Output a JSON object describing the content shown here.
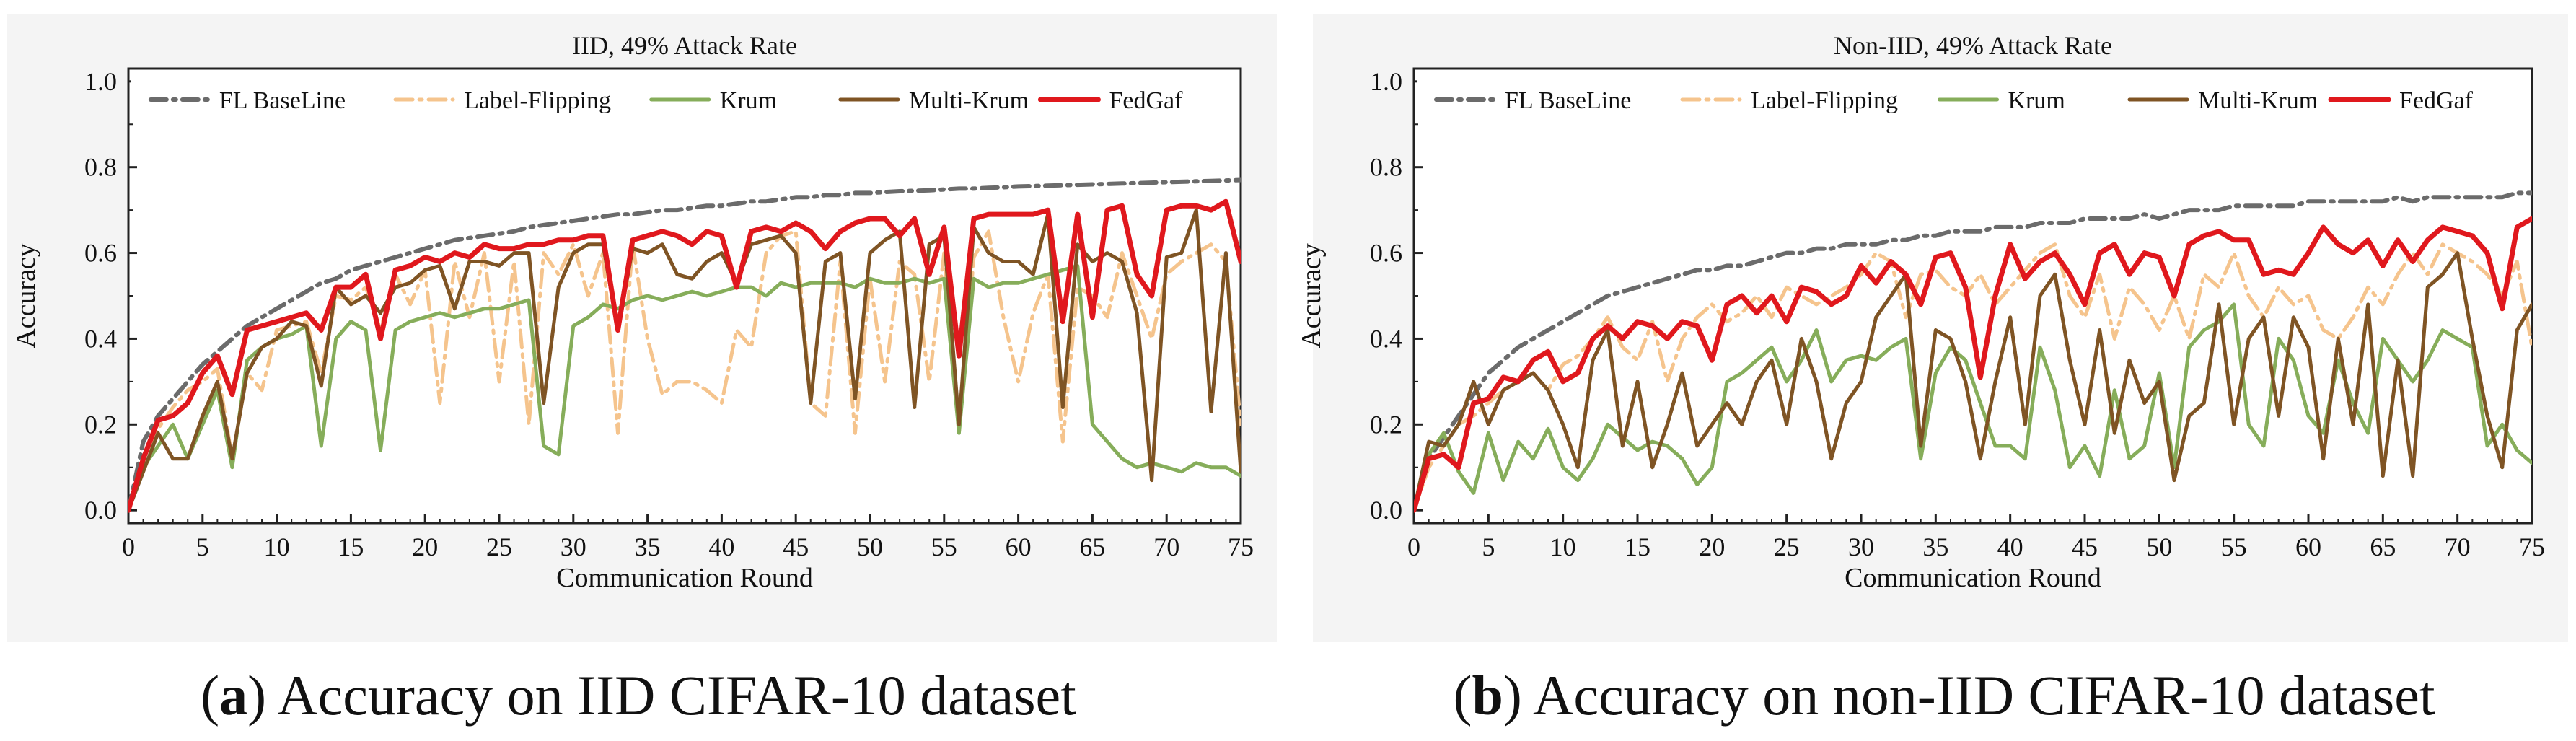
{
  "figure": {
    "captions": [
      {
        "letter": "a",
        "text": " Accuracy on IID CIFAR-10 dataset"
      },
      {
        "letter": "b",
        "text": " Accuracy on non-IID CIFAR-10 dataset"
      }
    ]
  },
  "colors": {
    "baseline": "#6b6b6b",
    "label_flipping": "#f5c48d",
    "krum": "#86ad5a",
    "multi_krum": "#7f5424",
    "fedgaf": "#e0181d",
    "axis": "#222222",
    "panel_bg": "#f4f4f4"
  },
  "chart_data": [
    {
      "type": "line",
      "title": "IID, 49% Attack Rate",
      "xlabel": "Communication Round",
      "ylabel": "Accuracy",
      "xlim": [
        0,
        75
      ],
      "ylim": [
        -0.03,
        1.03
      ],
      "xticks": [
        0,
        5,
        10,
        15,
        20,
        25,
        30,
        35,
        40,
        45,
        50,
        55,
        60,
        65,
        70,
        75
      ],
      "yticks": [
        0.0,
        0.2,
        0.4,
        0.6,
        0.8,
        1.0
      ],
      "ytick_labels": [
        "0.0",
        "0.2",
        "0.4",
        "0.6",
        "0.8",
        "1.0"
      ],
      "legend_position": "top",
      "x": [
        0,
        1,
        2,
        3,
        4,
        5,
        6,
        7,
        8,
        9,
        10,
        11,
        12,
        13,
        14,
        15,
        16,
        17,
        18,
        19,
        20,
        21,
        22,
        23,
        24,
        25,
        26,
        27,
        28,
        29,
        30,
        31,
        32,
        33,
        34,
        35,
        36,
        37,
        38,
        39,
        40,
        41,
        42,
        43,
        44,
        45,
        46,
        47,
        48,
        49,
        50,
        51,
        52,
        53,
        54,
        55,
        56,
        57,
        58,
        59,
        60,
        61,
        62,
        63,
        64,
        65,
        66,
        67,
        68,
        69,
        70,
        71,
        72,
        73,
        74,
        75
      ],
      "series": [
        {
          "name": "FL BaseLine",
          "key": "baseline",
          "values": [
            0,
            0.16,
            0.22,
            0.26,
            0.3,
            0.34,
            0.37,
            0.4,
            0.43,
            0.45,
            0.47,
            0.49,
            0.51,
            0.53,
            0.54,
            0.56,
            0.57,
            0.58,
            0.59,
            0.6,
            0.61,
            0.62,
            0.63,
            0.635,
            0.64,
            0.645,
            0.65,
            0.66,
            0.665,
            0.67,
            0.675,
            0.68,
            0.685,
            0.69,
            0.69,
            0.695,
            0.7,
            0.7,
            0.705,
            0.71,
            0.71,
            0.715,
            0.72,
            0.72,
            0.725,
            0.73,
            0.73,
            0.735,
            0.735,
            0.74,
            0.74,
            0.742,
            0.744,
            0.745,
            0.746,
            0.748,
            0.75,
            0.75,
            0.752,
            0.753,
            0.755,
            0.756,
            0.757,
            0.758,
            0.759,
            0.76,
            0.761,
            0.762,
            0.763,
            0.764,
            0.765,
            0.766,
            0.767,
            0.768,
            0.769,
            0.77
          ]
        },
        {
          "name": "Label-Flipping",
          "key": "label_flipping",
          "values": [
            0,
            0.12,
            0.19,
            0.24,
            0.28,
            0.3,
            0.33,
            0.12,
            0.32,
            0.28,
            0.42,
            0.43,
            0.44,
            0.32,
            0.5,
            0.49,
            0.52,
            0.42,
            0.55,
            0.48,
            0.56,
            0.25,
            0.58,
            0.45,
            0.6,
            0.3,
            0.58,
            0.2,
            0.6,
            0.55,
            0.62,
            0.5,
            0.6,
            0.18,
            0.62,
            0.4,
            0.27,
            0.3,
            0.3,
            0.28,
            0.25,
            0.42,
            0.38,
            0.6,
            0.64,
            0.65,
            0.25,
            0.22,
            0.58,
            0.18,
            0.54,
            0.3,
            0.58,
            0.55,
            0.3,
            0.6,
            0.18,
            0.59,
            0.65,
            0.45,
            0.3,
            0.46,
            0.55,
            0.16,
            0.52,
            0.5,
            0.45,
            0.6,
            0.5,
            0.4,
            0.55,
            0.58,
            0.6,
            0.62,
            0.58,
            0.2
          ]
        },
        {
          "name": "Krum",
          "key": "krum",
          "values": [
            0,
            0.1,
            0.15,
            0.2,
            0.12,
            0.2,
            0.28,
            0.1,
            0.35,
            0.38,
            0.4,
            0.41,
            0.43,
            0.15,
            0.4,
            0.44,
            0.42,
            0.14,
            0.42,
            0.44,
            0.45,
            0.46,
            0.45,
            0.46,
            0.47,
            0.47,
            0.48,
            0.49,
            0.15,
            0.13,
            0.43,
            0.45,
            0.48,
            0.47,
            0.49,
            0.5,
            0.49,
            0.5,
            0.51,
            0.5,
            0.51,
            0.52,
            0.52,
            0.5,
            0.53,
            0.52,
            0.53,
            0.53,
            0.53,
            0.52,
            0.54,
            0.53,
            0.53,
            0.54,
            0.53,
            0.54,
            0.18,
            0.54,
            0.52,
            0.53,
            0.53,
            0.54,
            0.55,
            0.56,
            0.57,
            0.2,
            0.16,
            0.12,
            0.1,
            0.11,
            0.1,
            0.09,
            0.11,
            0.1,
            0.1,
            0.08
          ]
        },
        {
          "name": "Multi-Krum",
          "key": "multi_krum",
          "values": [
            0,
            0.09,
            0.18,
            0.12,
            0.12,
            0.22,
            0.3,
            0.12,
            0.32,
            0.38,
            0.4,
            0.44,
            0.43,
            0.29,
            0.52,
            0.48,
            0.5,
            0.46,
            0.52,
            0.53,
            0.56,
            0.57,
            0.47,
            0.58,
            0.58,
            0.57,
            0.6,
            0.6,
            0.25,
            0.52,
            0.6,
            0.62,
            0.62,
            0.42,
            0.61,
            0.6,
            0.62,
            0.55,
            0.54,
            0.58,
            0.6,
            0.53,
            0.62,
            0.63,
            0.64,
            0.6,
            0.25,
            0.58,
            0.6,
            0.26,
            0.6,
            0.63,
            0.65,
            0.24,
            0.62,
            0.64,
            0.2,
            0.66,
            0.6,
            0.58,
            0.58,
            0.55,
            0.69,
            0.24,
            0.62,
            0.58,
            0.6,
            0.58,
            0.46,
            0.07,
            0.59,
            0.6,
            0.7,
            0.23,
            0.6,
            0.09
          ]
        },
        {
          "name": "FedGaf",
          "key": "fedgaf",
          "values": [
            0,
            0.12,
            0.21,
            0.22,
            0.25,
            0.32,
            0.36,
            0.27,
            0.42,
            0.43,
            0.44,
            0.45,
            0.46,
            0.42,
            0.52,
            0.52,
            0.55,
            0.4,
            0.56,
            0.57,
            0.59,
            0.58,
            0.6,
            0.59,
            0.62,
            0.61,
            0.61,
            0.62,
            0.62,
            0.63,
            0.63,
            0.64,
            0.64,
            0.42,
            0.63,
            0.64,
            0.65,
            0.64,
            0.62,
            0.65,
            0.64,
            0.52,
            0.65,
            0.66,
            0.65,
            0.67,
            0.65,
            0.61,
            0.65,
            0.67,
            0.68,
            0.68,
            0.64,
            0.68,
            0.55,
            0.66,
            0.36,
            0.68,
            0.69,
            0.69,
            0.69,
            0.69,
            0.7,
            0.44,
            0.69,
            0.45,
            0.7,
            0.71,
            0.55,
            0.5,
            0.7,
            0.71,
            0.71,
            0.7,
            0.72,
            0.58
          ]
        }
      ]
    },
    {
      "type": "line",
      "title": "Non-IID, 49% Attack Rate",
      "xlabel": "Communication Round",
      "ylabel": "Accuracy",
      "xlim": [
        0,
        75
      ],
      "ylim": [
        -0.03,
        1.03
      ],
      "xticks": [
        0,
        5,
        10,
        15,
        20,
        25,
        30,
        35,
        40,
        45,
        50,
        55,
        60,
        65,
        70,
        75
      ],
      "yticks": [
        0.0,
        0.2,
        0.4,
        0.6,
        0.8,
        1.0
      ],
      "ytick_labels": [
        "0.0",
        "0.2",
        "0.4",
        "0.6",
        "0.8",
        "1.0"
      ],
      "legend_position": "top",
      "x": [
        0,
        1,
        2,
        3,
        4,
        5,
        6,
        7,
        8,
        9,
        10,
        11,
        12,
        13,
        14,
        15,
        16,
        17,
        18,
        19,
        20,
        21,
        22,
        23,
        24,
        25,
        26,
        27,
        28,
        29,
        30,
        31,
        32,
        33,
        34,
        35,
        36,
        37,
        38,
        39,
        40,
        41,
        42,
        43,
        44,
        45,
        46,
        47,
        48,
        49,
        50,
        51,
        52,
        53,
        54,
        55,
        56,
        57,
        58,
        59,
        60,
        61,
        62,
        63,
        64,
        65,
        66,
        67,
        68,
        69,
        70,
        71,
        72,
        73,
        74,
        75
      ],
      "series": [
        {
          "name": "FL BaseLine",
          "key": "baseline",
          "values": [
            0,
            0.12,
            0.17,
            0.22,
            0.27,
            0.32,
            0.35,
            0.38,
            0.4,
            0.42,
            0.44,
            0.46,
            0.48,
            0.5,
            0.51,
            0.52,
            0.53,
            0.54,
            0.55,
            0.56,
            0.56,
            0.57,
            0.57,
            0.58,
            0.59,
            0.6,
            0.6,
            0.61,
            0.61,
            0.62,
            0.62,
            0.62,
            0.63,
            0.63,
            0.64,
            0.64,
            0.65,
            0.65,
            0.65,
            0.66,
            0.66,
            0.66,
            0.67,
            0.67,
            0.67,
            0.68,
            0.68,
            0.68,
            0.68,
            0.69,
            0.68,
            0.69,
            0.7,
            0.7,
            0.7,
            0.71,
            0.71,
            0.71,
            0.71,
            0.71,
            0.72,
            0.72,
            0.72,
            0.72,
            0.72,
            0.72,
            0.73,
            0.72,
            0.73,
            0.73,
            0.73,
            0.73,
            0.73,
            0.73,
            0.74,
            0.74
          ]
        },
        {
          "name": "Label-Flipping",
          "key": "label_flipping",
          "values": [
            0,
            0.1,
            0.15,
            0.2,
            0.22,
            0.25,
            0.28,
            0.3,
            0.32,
            0.28,
            0.34,
            0.36,
            0.4,
            0.45,
            0.38,
            0.35,
            0.44,
            0.3,
            0.4,
            0.45,
            0.48,
            0.44,
            0.46,
            0.5,
            0.45,
            0.52,
            0.5,
            0.48,
            0.5,
            0.52,
            0.55,
            0.6,
            0.58,
            0.45,
            0.55,
            0.56,
            0.52,
            0.5,
            0.55,
            0.48,
            0.52,
            0.56,
            0.6,
            0.62,
            0.5,
            0.45,
            0.55,
            0.4,
            0.52,
            0.48,
            0.42,
            0.5,
            0.4,
            0.55,
            0.52,
            0.6,
            0.5,
            0.45,
            0.52,
            0.48,
            0.5,
            0.42,
            0.4,
            0.45,
            0.52,
            0.48,
            0.55,
            0.6,
            0.55,
            0.62,
            0.6,
            0.58,
            0.55,
            0.5,
            0.58,
            0.38
          ]
        },
        {
          "name": "Krum",
          "key": "krum",
          "values": [
            0,
            0.13,
            0.18,
            0.09,
            0.04,
            0.18,
            0.07,
            0.16,
            0.12,
            0.19,
            0.1,
            0.07,
            0.12,
            0.2,
            0.17,
            0.14,
            0.16,
            0.15,
            0.12,
            0.06,
            0.1,
            0.3,
            0.32,
            0.35,
            0.38,
            0.3,
            0.35,
            0.42,
            0.3,
            0.35,
            0.36,
            0.35,
            0.38,
            0.4,
            0.12,
            0.32,
            0.38,
            0.35,
            0.25,
            0.15,
            0.15,
            0.12,
            0.38,
            0.28,
            0.1,
            0.15,
            0.08,
            0.28,
            0.12,
            0.15,
            0.32,
            0.1,
            0.38,
            0.42,
            0.44,
            0.48,
            0.2,
            0.15,
            0.4,
            0.35,
            0.22,
            0.18,
            0.35,
            0.25,
            0.18,
            0.4,
            0.35,
            0.3,
            0.35,
            0.42,
            0.4,
            0.38,
            0.15,
            0.2,
            0.14,
            0.11
          ]
        },
        {
          "name": "Multi-Krum",
          "key": "multi_krum",
          "values": [
            0,
            0.16,
            0.15,
            0.2,
            0.3,
            0.2,
            0.28,
            0.3,
            0.32,
            0.28,
            0.2,
            0.1,
            0.35,
            0.42,
            0.15,
            0.3,
            0.1,
            0.2,
            0.32,
            0.15,
            0.2,
            0.25,
            0.2,
            0.3,
            0.35,
            0.2,
            0.4,
            0.3,
            0.12,
            0.25,
            0.3,
            0.45,
            0.5,
            0.55,
            0.15,
            0.42,
            0.4,
            0.3,
            0.12,
            0.3,
            0.45,
            0.2,
            0.5,
            0.55,
            0.35,
            0.2,
            0.42,
            0.18,
            0.35,
            0.25,
            0.3,
            0.07,
            0.22,
            0.25,
            0.48,
            0.2,
            0.4,
            0.45,
            0.22,
            0.45,
            0.38,
            0.12,
            0.4,
            0.2,
            0.48,
            0.08,
            0.35,
            0.08,
            0.52,
            0.55,
            0.6,
            0.4,
            0.22,
            0.1,
            0.42,
            0.48
          ]
        },
        {
          "name": "FedGaf",
          "key": "fedgaf",
          "values": [
            0,
            0.12,
            0.13,
            0.1,
            0.25,
            0.26,
            0.31,
            0.3,
            0.35,
            0.37,
            0.3,
            0.32,
            0.4,
            0.43,
            0.4,
            0.44,
            0.43,
            0.4,
            0.44,
            0.43,
            0.35,
            0.48,
            0.5,
            0.46,
            0.5,
            0.44,
            0.52,
            0.51,
            0.48,
            0.5,
            0.57,
            0.53,
            0.58,
            0.55,
            0.48,
            0.59,
            0.6,
            0.52,
            0.31,
            0.5,
            0.62,
            0.54,
            0.58,
            0.6,
            0.55,
            0.48,
            0.6,
            0.62,
            0.55,
            0.6,
            0.59,
            0.5,
            0.62,
            0.64,
            0.65,
            0.63,
            0.63,
            0.55,
            0.56,
            0.55,
            0.6,
            0.66,
            0.62,
            0.6,
            0.63,
            0.57,
            0.63,
            0.58,
            0.63,
            0.66,
            0.65,
            0.64,
            0.6,
            0.47,
            0.66,
            0.68
          ]
        }
      ]
    }
  ]
}
